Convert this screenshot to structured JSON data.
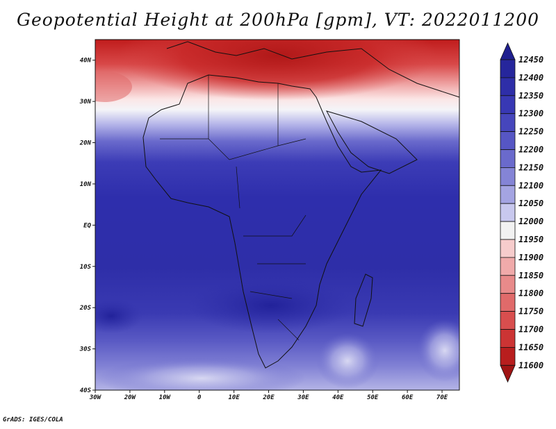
{
  "title": "Geopotential Height at 200hPa [gpm], VT: 2022011200",
  "footer": "GrADS: IGES/COLA",
  "map": {
    "lat_labels": [
      "40N",
      "30N",
      "20N",
      "10N",
      "EQ",
      "10S",
      "20S",
      "30S",
      "40S"
    ],
    "lon_labels": [
      "30W",
      "20W",
      "10W",
      "0",
      "10E",
      "20E",
      "30E",
      "40E",
      "50E",
      "60E",
      "70E"
    ],
    "lat_range": [
      -40,
      45
    ],
    "lon_range": [
      -30,
      75
    ]
  },
  "colorbar": {
    "levels": [
      "12450",
      "12400",
      "12350",
      "12300",
      "12250",
      "12200",
      "12150",
      "12100",
      "12050",
      "12000",
      "11950",
      "11900",
      "11850",
      "11800",
      "11750",
      "11700",
      "11650",
      "11600"
    ],
    "colors": [
      "#1f1f8f",
      "#26269c",
      "#2e2ea8",
      "#3838b4",
      "#4646bc",
      "#5656c4",
      "#6a6acc",
      "#8484d6",
      "#a4a4e2",
      "#c8c8ee",
      "#f2f2f2",
      "#f6cccc",
      "#f0aaaa",
      "#e88a8a",
      "#e06a6a",
      "#d84e4e",
      "#cc3434",
      "#b81e1e",
      "#a01414"
    ]
  }
}
